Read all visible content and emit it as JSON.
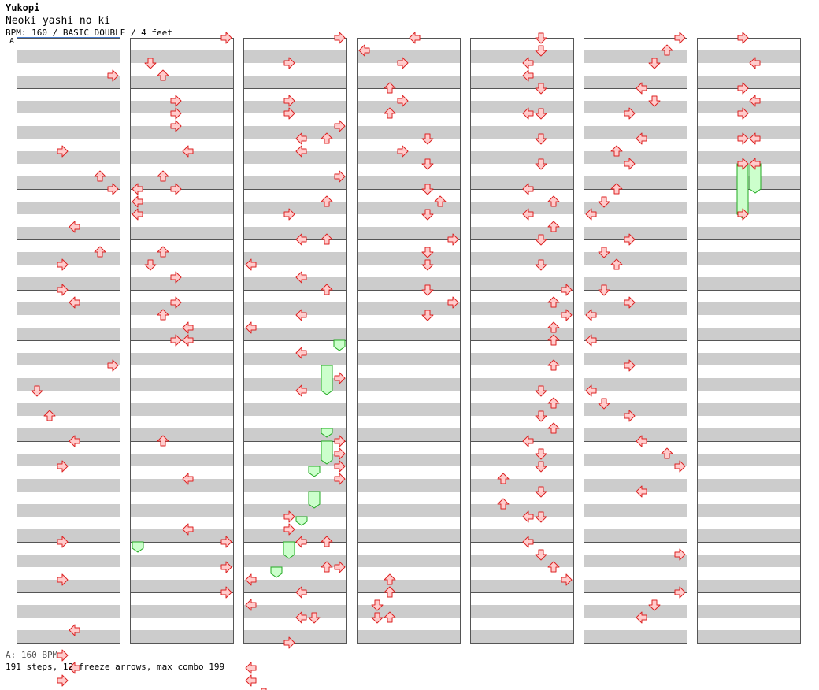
{
  "header": {
    "artist": "Yukopi",
    "song": "Neoki yashi no ki",
    "info": "BPM: 160 / BASIC DOUBLE / 4 feet"
  },
  "bpm_marker": "A",
  "footer": {
    "bpm_legend": "A: 160 BPM",
    "stats": "191 steps, 12 freeze arrows, max combo 199"
  },
  "colors": {
    "stripe": "#cccccc",
    "border": "#555555",
    "arrow_fill": "#ffcccc",
    "arrow_stroke": "#dd2222",
    "freeze_fill": "#ccffcc",
    "freeze_stroke": "#22aa22",
    "bpm_line": "#4a7fd0"
  },
  "layout": {
    "columns": 7,
    "measures_per_column": 12,
    "lanes": [
      "P1-left",
      "P1-down",
      "P1-up",
      "P1-right",
      "P2-left",
      "P2-down",
      "P2-up",
      "P2-right"
    ]
  },
  "steps": [
    [
      1,
      0,
      3,
      7
    ],
    [
      1,
      1,
      5,
      3
    ],
    [
      1,
      2,
      3,
      6
    ],
    [
      1,
      2,
      4,
      7
    ],
    [
      1,
      3,
      3,
      4
    ],
    [
      1,
      3,
      5,
      6
    ],
    [
      1,
      3,
      6,
      3
    ],
    [
      1,
      4,
      5,
      4
    ],
    [
      1,
      5,
      0,
      3
    ],
    [
      1,
      6,
      2,
      7
    ],
    [
      1,
      6,
      4,
      1
    ],
    [
      1,
      7,
      2,
      2
    ],
    [
      1,
      8,
      0,
      4
    ],
    [
      1,
      8,
      2,
      3
    ],
    [
      1,
      9,
      4,
      3
    ],
    [
      1,
      10,
      3,
      3
    ],
    [
      1,
      11,
      3,
      4
    ],
    [
      1,
      11,
      5,
      3
    ],
    [
      1,
      11,
      6,
      4
    ],
    [
      1,
      11,
      7,
      3
    ],
    [
      2,
      0,
      0,
      7
    ],
    [
      2,
      0,
      2,
      1
    ],
    [
      2,
      0,
      3,
      2
    ],
    [
      2,
      1,
      1,
      3
    ],
    [
      2,
      1,
      2,
      3
    ],
    [
      2,
      1,
      3,
      3
    ],
    [
      2,
      2,
      1,
      4
    ],
    [
      2,
      2,
      3,
      2
    ],
    [
      2,
      2,
      4,
      3
    ],
    [
      2,
      3,
      0,
      0
    ],
    [
      2,
      3,
      1,
      0
    ],
    [
      2,
      3,
      2,
      0
    ],
    [
      2,
      4,
      1,
      2
    ],
    [
      2,
      4,
      2,
      1
    ],
    [
      2,
      4,
      3,
      3
    ],
    [
      2,
      5,
      1,
      3
    ],
    [
      2,
      5,
      2,
      2
    ],
    [
      2,
      5,
      3,
      4
    ],
    [
      2,
      5,
      4,
      3
    ],
    [
      2,
      5,
      4,
      4
    ],
    [
      2,
      7,
      4,
      2
    ],
    [
      2,
      8,
      3,
      4
    ],
    [
      2,
      9,
      3,
      4
    ],
    [
      2,
      10,
      0,
      7
    ],
    [
      2,
      10,
      2,
      7
    ],
    [
      2,
      11,
      0,
      7
    ],
    [
      3,
      0,
      0,
      7
    ],
    [
      3,
      0,
      2,
      3
    ],
    [
      3,
      1,
      1,
      3
    ],
    [
      3,
      1,
      2,
      3
    ],
    [
      3,
      1,
      3,
      7
    ],
    [
      3,
      1,
      4,
      6
    ],
    [
      3,
      2,
      0,
      4
    ],
    [
      3,
      2,
      1,
      4
    ],
    [
      3,
      2,
      3,
      7
    ],
    [
      3,
      3,
      1,
      6
    ],
    [
      3,
      3,
      2,
      3
    ],
    [
      3,
      3,
      4,
      4
    ],
    [
      3,
      4,
      0,
      6
    ],
    [
      3,
      4,
      2,
      0
    ],
    [
      3,
      4,
      3,
      4
    ],
    [
      3,
      5,
      0,
      6
    ],
    [
      3,
      5,
      2,
      4
    ],
    [
      3,
      5,
      3,
      0
    ],
    [
      3,
      6,
      1,
      4
    ],
    [
      3,
      6,
      3,
      7
    ],
    [
      3,
      6,
      4,
      4
    ],
    [
      3,
      7,
      4,
      7
    ],
    [
      3,
      7,
      5,
      7
    ],
    [
      3,
      7,
      6,
      7
    ],
    [
      3,
      7,
      7,
      7
    ],
    [
      3,
      8,
      0,
      7
    ],
    [
      3,
      8,
      2,
      7
    ],
    [
      3,
      9,
      2,
      3
    ],
    [
      3,
      9,
      3,
      3
    ],
    [
      3,
      9,
      4,
      6
    ],
    [
      3,
      9,
      6,
      7
    ],
    [
      3,
      10,
      0,
      4
    ],
    [
      3,
      10,
      2,
      6
    ],
    [
      3,
      10,
      3,
      0
    ],
    [
      3,
      11,
      0,
      4
    ],
    [
      3,
      11,
      1,
      0
    ],
    [
      3,
      11,
      2,
      4
    ],
    [
      3,
      11,
      2,
      5
    ],
    [
      3,
      12,
      0,
      3
    ],
    [
      3,
      12,
      2,
      0
    ],
    [
      3,
      12,
      3,
      0
    ],
    [
      3,
      12,
      4,
      1
    ],
    [
      3,
      12,
      6,
      0
    ],
    [
      4,
      0,
      0,
      4
    ],
    [
      4,
      0,
      1,
      0
    ],
    [
      4,
      0,
      2,
      3
    ],
    [
      4,
      1,
      0,
      2
    ],
    [
      4,
      1,
      1,
      3
    ],
    [
      4,
      1,
      2,
      2
    ],
    [
      4,
      2,
      0,
      5
    ],
    [
      4,
      2,
      1,
      3
    ],
    [
      4,
      2,
      2,
      5
    ],
    [
      4,
      3,
      0,
      5
    ],
    [
      4,
      3,
      1,
      6
    ],
    [
      4,
      3,
      2,
      5
    ],
    [
      4,
      4,
      0,
      7
    ],
    [
      4,
      4,
      1,
      5
    ],
    [
      4,
      4,
      2,
      5
    ],
    [
      4,
      5,
      0,
      5
    ],
    [
      4,
      5,
      1,
      7
    ],
    [
      4,
      5,
      2,
      5
    ],
    [
      4,
      10,
      3,
      2
    ],
    [
      4,
      10,
      4,
      2
    ],
    [
      4,
      10,
      6,
      2
    ],
    [
      4,
      11,
      0,
      2
    ],
    [
      4,
      11,
      1,
      1
    ],
    [
      4,
      11,
      2,
      1
    ],
    [
      5,
      0,
      0,
      5
    ],
    [
      5,
      0,
      1,
      5
    ],
    [
      5,
      0,
      2,
      4
    ],
    [
      5,
      0,
      3,
      4
    ],
    [
      5,
      1,
      0,
      5
    ],
    [
      5,
      1,
      2,
      4
    ],
    [
      5,
      1,
      2,
      5
    ],
    [
      5,
      2,
      0,
      5
    ],
    [
      5,
      2,
      2,
      5
    ],
    [
      5,
      3,
      0,
      4
    ],
    [
      5,
      3,
      1,
      6
    ],
    [
      5,
      3,
      2,
      4
    ],
    [
      5,
      3,
      3,
      6
    ],
    [
      5,
      4,
      0,
      5
    ],
    [
      5,
      4,
      2,
      5
    ],
    [
      5,
      5,
      0,
      7
    ],
    [
      5,
      5,
      1,
      6
    ],
    [
      5,
      5,
      2,
      7
    ],
    [
      5,
      5,
      3,
      6
    ],
    [
      5,
      6,
      0,
      6
    ],
    [
      5,
      6,
      2,
      6
    ],
    [
      5,
      7,
      0,
      5
    ],
    [
      5,
      7,
      1,
      6
    ],
    [
      5,
      7,
      2,
      5
    ],
    [
      5,
      7,
      3,
      6
    ],
    [
      5,
      8,
      0,
      4
    ],
    [
      5,
      8,
      1,
      5
    ],
    [
      5,
      8,
      2,
      5
    ],
    [
      5,
      8,
      3,
      2
    ],
    [
      5,
      9,
      0,
      5
    ],
    [
      5,
      9,
      1,
      2
    ],
    [
      5,
      9,
      2,
      4
    ],
    [
      5,
      9,
      2,
      5
    ],
    [
      5,
      10,
      0,
      4
    ],
    [
      5,
      10,
      1,
      5
    ],
    [
      5,
      10,
      2,
      6
    ],
    [
      5,
      10,
      3,
      7
    ],
    [
      6,
      0,
      0,
      7
    ],
    [
      6,
      0,
      1,
      6
    ],
    [
      6,
      0,
      2,
      5
    ],
    [
      6,
      1,
      0,
      4
    ],
    [
      6,
      1,
      1,
      5
    ],
    [
      6,
      1,
      2,
      3
    ],
    [
      6,
      2,
      0,
      4
    ],
    [
      6,
      2,
      1,
      2
    ],
    [
      6,
      2,
      2,
      3
    ],
    [
      6,
      3,
      0,
      2
    ],
    [
      6,
      3,
      1,
      1
    ],
    [
      6,
      3,
      2,
      0
    ],
    [
      6,
      4,
      0,
      3
    ],
    [
      6,
      4,
      1,
      1
    ],
    [
      6,
      4,
      2,
      2
    ],
    [
      6,
      5,
      0,
      1
    ],
    [
      6,
      5,
      1,
      3
    ],
    [
      6,
      5,
      2,
      0
    ],
    [
      6,
      6,
      0,
      0
    ],
    [
      6,
      6,
      2,
      3
    ],
    [
      6,
      7,
      0,
      0
    ],
    [
      6,
      7,
      1,
      1
    ],
    [
      6,
      7,
      2,
      3
    ],
    [
      6,
      8,
      0,
      4
    ],
    [
      6,
      8,
      1,
      6
    ],
    [
      6,
      8,
      2,
      7
    ],
    [
      6,
      9,
      0,
      4
    ],
    [
      6,
      10,
      1,
      7
    ],
    [
      6,
      11,
      0,
      7
    ],
    [
      6,
      11,
      1,
      5
    ],
    [
      6,
      11,
      2,
      4
    ],
    [
      7,
      0,
      0,
      3
    ],
    [
      7,
      0,
      2,
      4
    ],
    [
      7,
      1,
      0,
      3
    ],
    [
      7,
      1,
      1,
      4
    ],
    [
      7,
      1,
      2,
      3
    ],
    [
      7,
      2,
      0,
      3
    ],
    [
      7,
      2,
      0,
      4
    ],
    [
      7,
      2,
      2,
      3
    ],
    [
      7,
      2,
      2,
      4
    ],
    [
      7,
      3,
      2,
      3
    ]
  ],
  "freezes": [
    [
      3,
      6,
      0,
      7,
      6,
      0.5
    ],
    [
      3,
      6,
      2,
      6,
      6,
      4
    ],
    [
      3,
      7,
      3,
      6,
      7,
      1
    ],
    [
      3,
      8,
      0,
      6,
      8,
      1.5
    ],
    [
      3,
      8,
      2,
      5,
      8,
      2.5
    ],
    [
      3,
      9,
      0,
      5,
      9,
      1
    ],
    [
      3,
      9,
      2,
      4,
      9,
      1.5
    ],
    [
      3,
      10,
      0,
      3,
      10,
      1
    ],
    [
      3,
      10,
      2,
      2,
      10,
      2.5
    ],
    [
      7,
      2,
      2,
      3,
      3,
      2
    ],
    [
      7,
      2,
      2,
      4,
      3,
      0
    ],
    [
      2,
      10,
      0,
      0,
      10,
      0.5
    ]
  ]
}
